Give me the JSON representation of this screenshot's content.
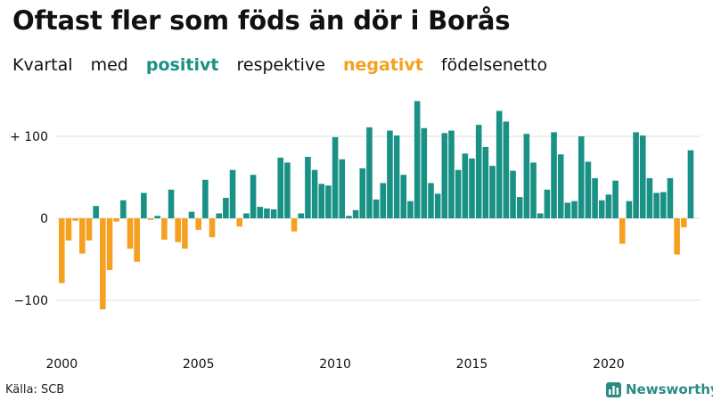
{
  "title": "Oftast fler som föds än dör i Borås",
  "subtitle": {
    "part1": "Kvartal",
    "part2": "med",
    "positive": "positivt",
    "part3": "respektive",
    "negative": "negativt",
    "part4": "födelsenetto"
  },
  "source": "Källa: SCB",
  "brand": "Newsworthy",
  "colors": {
    "positive": "#1a9185",
    "negative": "#f5a021",
    "grid": "#dddddd",
    "text": "#111111"
  },
  "chart_data": {
    "type": "bar",
    "x_start": 2000,
    "periods_per_year": 4,
    "y_ticks": [
      100,
      0,
      -100
    ],
    "y_tick_labels": [
      "+ 100",
      "0",
      "−100"
    ],
    "x_tick_labels": [
      "2000",
      "2005",
      "2010",
      "2015",
      "2020"
    ],
    "ylim": [
      -135,
      150
    ],
    "values": [
      -79,
      -27,
      -3,
      -43,
      -27,
      15,
      -111,
      -63,
      -4,
      22,
      -37,
      -53,
      31,
      -2,
      3,
      -26,
      35,
      -29,
      -37,
      8,
      -14,
      47,
      -23,
      6,
      25,
      59,
      -10,
      6,
      53,
      14,
      12,
      11,
      74,
      68,
      -16,
      6,
      75,
      59,
      42,
      40,
      99,
      72,
      3,
      10,
      61,
      111,
      23,
      43,
      107,
      101,
      53,
      21,
      143,
      110,
      43,
      30,
      104,
      107,
      59,
      79,
      73,
      114,
      87,
      64,
      131,
      118,
      58,
      26,
      103,
      68,
      6,
      35,
      105,
      78,
      19,
      21,
      100,
      69,
      49,
      22,
      29,
      46,
      -31,
      21,
      105,
      101,
      49,
      31,
      32,
      49,
      -44,
      -11,
      83
    ]
  }
}
